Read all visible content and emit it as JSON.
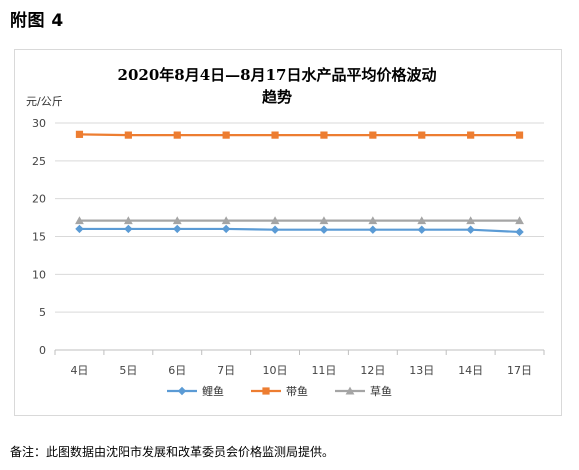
{
  "figure_label": "附图 4",
  "note": "备注：此图数据由沈阳市发展和改革委员会价格监测局提供。",
  "chart_data": {
    "type": "line",
    "title_lines": [
      "2020年8月4日—8月17日水产品平均价格波动",
      "趋势"
    ],
    "xlabel": "",
    "ylabel": "元/公斤",
    "ylim": [
      0,
      30
    ],
    "yticks": [
      0,
      5,
      10,
      15,
      20,
      25,
      30
    ],
    "grid": true,
    "legend_position": "bottom",
    "categories": [
      "4日",
      "5日",
      "6日",
      "7日",
      "10日",
      "11日",
      "12日",
      "13日",
      "14日",
      "17日"
    ],
    "series": [
      {
        "name": "鲤鱼",
        "color": "#5b9bd5",
        "marker": "diamond",
        "values": [
          16.0,
          16.0,
          16.0,
          16.0,
          15.9,
          15.9,
          15.9,
          15.9,
          15.9,
          15.6
        ]
      },
      {
        "name": "带鱼",
        "color": "#ed7d31",
        "marker": "square",
        "values": [
          28.5,
          28.4,
          28.4,
          28.4,
          28.4,
          28.4,
          28.4,
          28.4,
          28.4,
          28.4
        ]
      },
      {
        "name": "草鱼",
        "color": "#a5a5a5",
        "marker": "triangle",
        "values": [
          17.1,
          17.1,
          17.1,
          17.1,
          17.1,
          17.1,
          17.1,
          17.1,
          17.1,
          17.1
        ]
      }
    ]
  }
}
